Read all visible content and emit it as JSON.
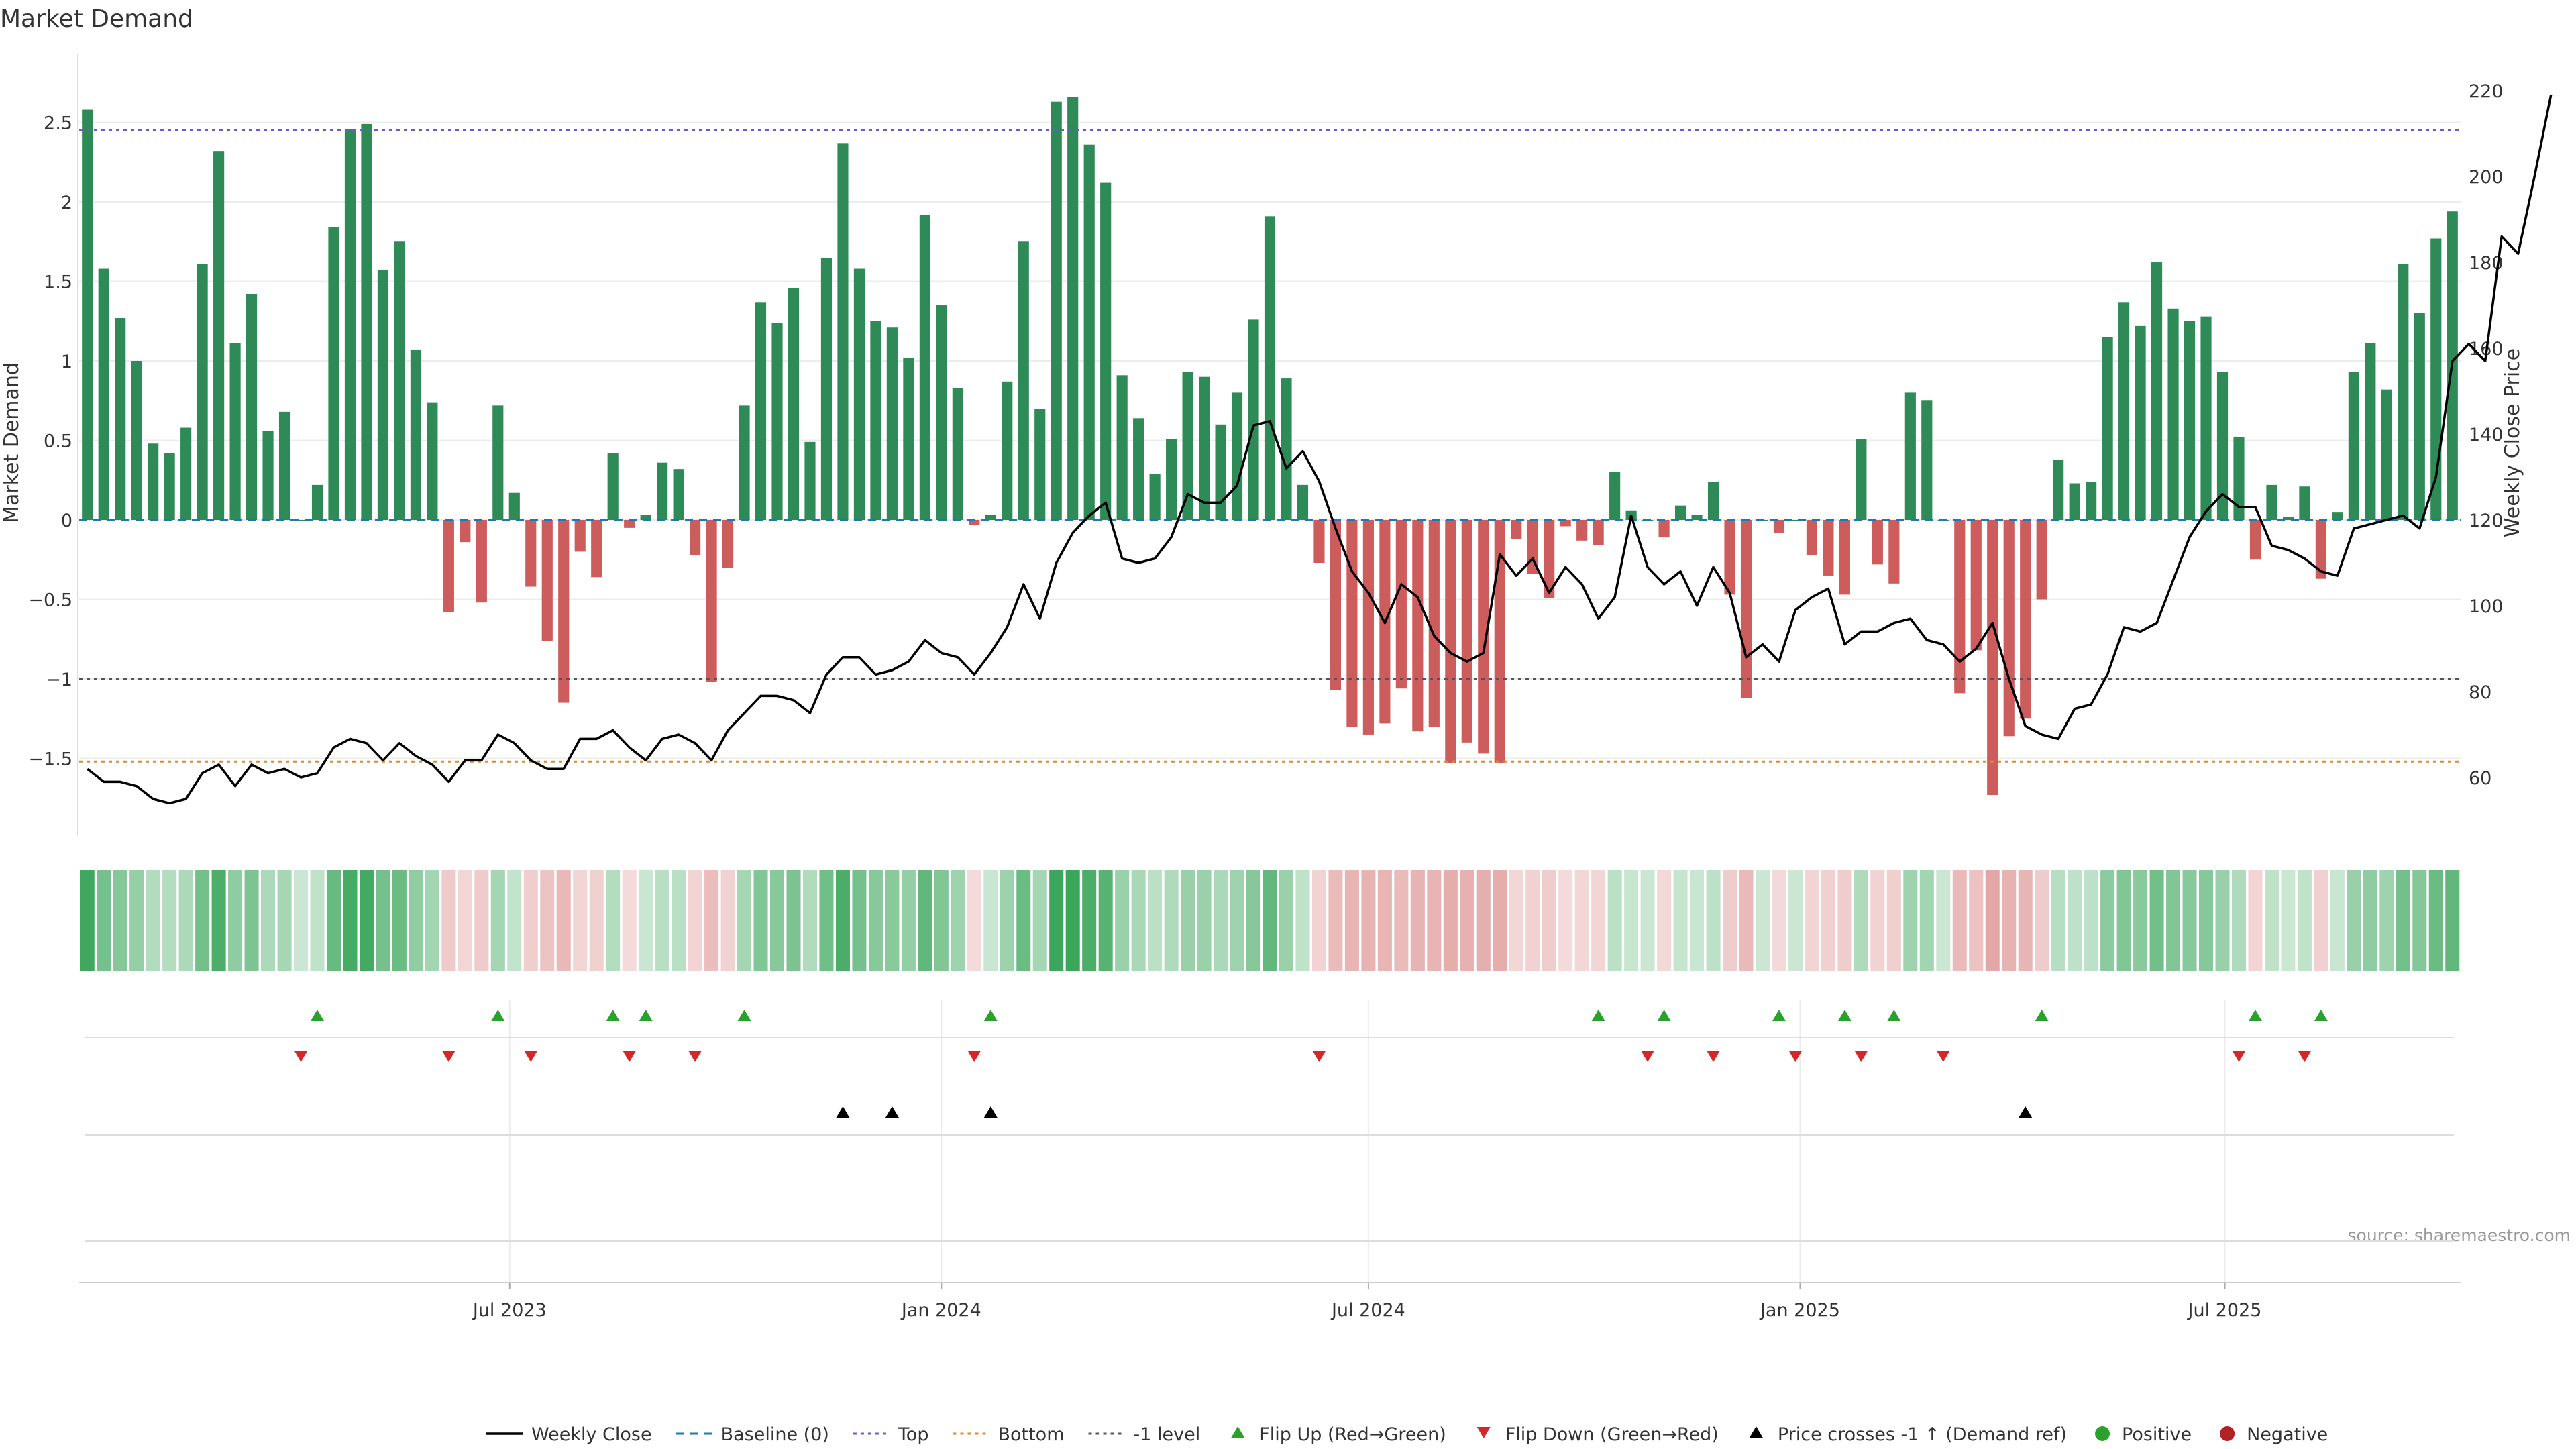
{
  "chart_data": {
    "type": "bar",
    "title": "Market Demand",
    "ylabel": "Market Demand",
    "y2label": "Weekly Close Price",
    "ylim": [
      -2.0,
      2.8
    ],
    "y2lim": [
      42,
      224
    ],
    "yticks": [
      "2.5",
      "2",
      "1.5",
      "1",
      "0.5",
      "0",
      "−0.5",
      "−1",
      "−1.5"
    ],
    "y2ticks": [
      "220",
      "200",
      "180",
      "160",
      "140",
      "120",
      "100",
      "80",
      "60"
    ],
    "x_start": "2023-01-02",
    "x_freq": "weekly",
    "xticks": [
      "Jul 2023",
      "Jan 2024",
      "Jul 2024",
      "Jan 2025",
      "Jul 2025"
    ],
    "levels": {
      "top": 2.45,
      "bottom": -1.52,
      "minus_one": -1.0,
      "baseline": 0
    },
    "demand": [
      2.58,
      1.58,
      1.27,
      1.0,
      0.48,
      0.42,
      0.58,
      1.61,
      2.32,
      1.11,
      1.42,
      0.56,
      0.68,
      0.0,
      0.22,
      1.84,
      2.46,
      2.49,
      1.57,
      1.75,
      1.07,
      0.74,
      -0.58,
      -0.14,
      -0.52,
      0.72,
      0.17,
      -0.42,
      -0.76,
      -1.15,
      -0.2,
      -0.36,
      0.42,
      -0.05,
      0.03,
      0.36,
      0.32,
      -0.22,
      -1.02,
      -0.3,
      0.72,
      1.37,
      1.24,
      1.46,
      0.49,
      1.65,
      2.37,
      1.58,
      1.25,
      1.21,
      1.02,
      1.92,
      1.35,
      0.83,
      -0.03,
      0.03,
      0.87,
      1.75,
      0.7,
      2.63,
      2.66,
      2.36,
      2.12,
      0.91,
      0.64,
      0.29,
      0.51,
      0.93,
      0.9,
      0.6,
      0.8,
      1.26,
      1.91,
      0.89,
      0.22,
      -0.27,
      -1.07,
      -1.3,
      -1.35,
      -1.28,
      -1.06,
      -1.33,
      -1.3,
      -1.53,
      -1.4,
      -1.47,
      -1.53,
      -0.12,
      -0.34,
      -0.49,
      -0.04,
      -0.13,
      -0.16,
      0.3,
      0.06,
      0.0,
      -0.11,
      0.09,
      0.03,
      0.24,
      -0.47,
      -1.12,
      0.0,
      -0.08,
      0.0,
      -0.22,
      -0.35,
      -0.47,
      0.51,
      -0.28,
      -0.4,
      0.8,
      0.75,
      0.0,
      -1.09,
      -0.82,
      -1.73,
      -1.36,
      -1.25,
      -0.5,
      0.38,
      0.23,
      0.24,
      1.15,
      1.37,
      1.22,
      1.62,
      1.33,
      1.25,
      1.28,
      0.93,
      0.52,
      -0.25,
      0.22,
      0.02,
      0.21,
      -0.37,
      0.05,
      0.93,
      1.11,
      0.82,
      1.61,
      1.3,
      1.77,
      1.94
    ],
    "series": [
      {
        "name": "Weekly Close",
        "values": [
          62,
          59,
          59,
          58,
          55,
          54,
          55,
          61,
          63,
          58,
          63,
          61,
          62,
          60,
          61,
          67,
          69,
          68,
          64,
          68,
          65,
          63,
          59,
          64,
          64,
          70,
          68,
          64,
          62,
          62,
          69,
          69,
          71,
          67,
          64,
          69,
          70,
          68,
          64,
          71,
          75,
          79,
          79,
          78,
          75,
          84,
          88,
          88,
          84,
          85,
          87,
          92,
          89,
          88,
          84,
          89,
          95,
          105,
          97,
          110,
          117,
          121,
          124,
          111,
          110,
          111,
          116,
          126,
          124,
          124,
          128,
          142,
          143,
          132,
          136,
          129,
          118,
          108,
          103,
          96,
          105,
          102,
          93,
          89,
          87,
          89,
          112,
          107,
          111,
          103,
          109,
          105,
          97,
          102,
          121,
          109,
          105,
          108,
          100,
          109,
          103,
          88,
          91,
          87,
          99,
          102,
          104,
          91,
          94,
          94,
          96,
          97,
          92,
          91,
          87,
          90,
          96,
          83,
          72,
          70,
          69,
          76,
          77,
          84,
          95,
          94,
          96,
          106,
          116,
          122,
          126,
          123,
          123,
          114,
          113,
          111,
          108,
          107,
          118,
          119,
          120,
          121,
          118,
          130,
          157,
          161,
          157,
          186,
          182,
          200,
          219
        ]
      },
      {
        "name": "Baseline (0)"
      },
      {
        "name": "Top"
      },
      {
        "name": "Bottom"
      },
      {
        "name": "-1 level"
      },
      {
        "name": "Flip Up (Red→Green)"
      },
      {
        "name": "Flip Down (Green→Red)"
      },
      {
        "name": "Price crosses -1 ↑ (Demand ref)"
      },
      {
        "name": "Positive"
      },
      {
        "name": "Negative"
      }
    ],
    "flip_up_weeks": [
      14,
      25,
      32,
      34,
      40,
      55,
      92,
      96,
      103,
      107,
      110,
      119,
      132,
      136
    ],
    "flip_down_weeks": [
      13,
      22,
      27,
      33,
      37,
      54,
      75,
      95,
      99,
      104,
      108,
      113,
      131,
      135
    ],
    "price_cross_weeks": [
      46,
      49,
      55,
      118
    ],
    "colors": {
      "positive": "#2e8b57",
      "negative": "#cd5c5c",
      "price": "#000000",
      "baseline": "#1f77b4",
      "top": "#6a5acd",
      "bottom": "#e08a2c",
      "minus_one": "#555555",
      "flip_up": "#2ca02c",
      "flip_down": "#d62728",
      "cross": "#000000",
      "legend_positive": "#2ca02c",
      "legend_negative": "#b22222"
    },
    "source": "source: sharemaestro.com"
  }
}
